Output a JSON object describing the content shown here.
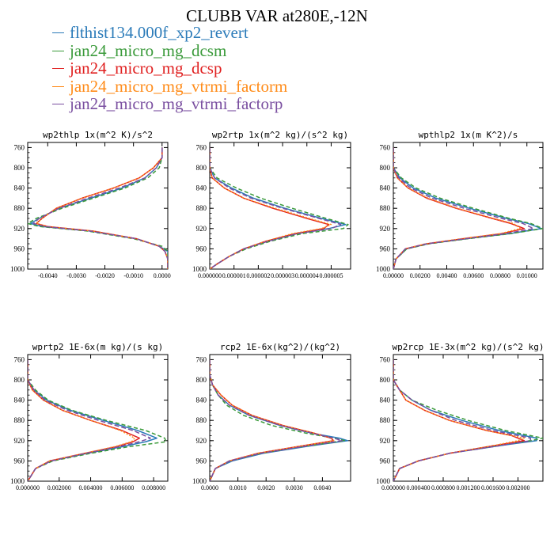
{
  "figure": {
    "title": "CLUBB VAR at280E,-12N"
  },
  "legend": [
    {
      "label": "flthist134.000f_xp2_revert",
      "color": "#2b7bb9"
    },
    {
      "label": "jan24_micro_mg_dcsm",
      "color": "#3a9a3a"
    },
    {
      "label": "jan24_micro_mg_dcsp",
      "color": "#e02020"
    },
    {
      "label": "jan24_micro_mg_vtrmi_factorm",
      "color": "#ff8c1a"
    },
    {
      "label": "jan24_micro_mg_vtrmi_factorp",
      "color": "#7a4fa0"
    }
  ],
  "chart_data": [
    {
      "type": "line",
      "title": "wp2thlp  1x(m^2 K)/s^2",
      "ylim": [
        1000,
        750
      ],
      "yticks": [
        760,
        800,
        840,
        880,
        920,
        960,
        1000
      ],
      "xlim": [
        -0.0047,
        0.0002
      ],
      "xticks": [
        -0.004,
        -0.003,
        -0.002,
        -0.001,
        0.0
      ],
      "xtick_labels": [
        "-0.0040",
        "-0.0030",
        "-0.0020",
        "-0.0010",
        "0.0000"
      ],
      "levels": [
        760,
        780,
        800,
        820,
        840,
        860,
        880,
        900,
        910,
        916,
        925,
        940,
        955,
        965,
        980,
        1000
      ],
      "series": [
        {
          "values": [
            0.0,
            0.0,
            -0.0002,
            -0.0006,
            -0.0014,
            -0.0025,
            -0.0036,
            -0.0043,
            -0.0046,
            -0.0042,
            -0.0025,
            -0.0009,
            -0.0001,
            0.0002,
            0.0002,
            0.0002
          ]
        },
        {
          "values": [
            0.0,
            0.0,
            -0.0001,
            -0.0005,
            -0.0013,
            -0.0024,
            -0.0035,
            -0.0044,
            -0.0047,
            -0.0043,
            -0.0026,
            -0.001,
            0.0,
            0.0002,
            0.0002,
            0.0002
          ]
        },
        {
          "values": [
            0.0,
            0.0,
            -0.0003,
            -0.0008,
            -0.0017,
            -0.0028,
            -0.0037,
            -0.0042,
            -0.0044,
            -0.004,
            -0.0024,
            -0.0009,
            -0.0001,
            0.0001,
            0.0002,
            0.0002
          ]
        },
        {
          "values": [
            0.0,
            0.0,
            -0.0003,
            -0.0008,
            -0.0017,
            -0.0028,
            -0.0037,
            -0.0042,
            -0.0044,
            -0.004,
            -0.0024,
            -0.0009,
            -0.0001,
            0.0001,
            0.0002,
            0.0002
          ]
        },
        {
          "values": [
            0.0,
            0.0,
            -0.0002,
            -0.0006,
            -0.0015,
            -0.0026,
            -0.0036,
            -0.0043,
            -0.0045,
            -0.0041,
            -0.0025,
            -0.0009,
            -0.0001,
            0.0001,
            0.0002,
            0.0002
          ]
        }
      ]
    },
    {
      "type": "line",
      "title": "wp2rtp  1x(m^2 kg)/(s^2 kg)",
      "ylim": [
        1000,
        750
      ],
      "yticks": [
        760,
        800,
        840,
        880,
        920,
        960,
        1000
      ],
      "xlim": [
        0.0,
        5.8e-06
      ],
      "xticks": [
        0.0,
        1e-06,
        2e-06,
        3e-06,
        4e-06,
        5e-06
      ],
      "xtick_labels": [
        "0.000000",
        "0.000001",
        "0.000002",
        "0.000003",
        "0.000004",
        "0.000005"
      ],
      "levels": [
        760,
        800,
        820,
        840,
        860,
        880,
        900,
        912,
        920,
        930,
        945,
        960,
        975,
        990,
        1000
      ],
      "series": [
        {
          "values": [
            0.0,
            0.0,
            2e-07,
            9e-07,
            1.8e-06,
            3.1e-06,
            4.6e-06,
            5.6e-06,
            4.9e-06,
            3.6e-06,
            2.4e-06,
            1.4e-06,
            8e-07,
            3e-07,
            0.0
          ]
        },
        {
          "values": [
            0.0,
            0.0,
            3e-07,
            1.1e-06,
            2.1e-06,
            3.4e-06,
            4.8e-06,
            5.7e-06,
            5.5e-06,
            3.8e-06,
            2.5e-06,
            1.5e-06,
            8e-07,
            3e-07,
            0.0
          ]
        },
        {
          "values": [
            0.0,
            0.0,
            1e-07,
            6e-07,
            1.4e-06,
            2.6e-06,
            4e-06,
            4.9e-06,
            4.7e-06,
            3.5e-06,
            2.3e-06,
            1.4e-06,
            8e-07,
            3e-07,
            0.0
          ]
        },
        {
          "values": [
            0.0,
            0.0,
            1e-07,
            6e-07,
            1.4e-06,
            2.7e-06,
            4.1e-06,
            5e-06,
            4.6e-06,
            3.4e-06,
            2.3e-06,
            1.4e-06,
            8e-07,
            3e-07,
            0.0
          ]
        },
        {
          "values": [
            0.0,
            0.0,
            2e-07,
            8e-07,
            1.7e-06,
            3e-06,
            4.5e-06,
            5.4e-06,
            5e-06,
            3.6e-06,
            2.4e-06,
            1.4e-06,
            8e-07,
            3e-07,
            0.0
          ]
        }
      ]
    },
    {
      "type": "line",
      "title": "wpthlp2  1x(m K^2)/s",
      "ylim": [
        1000,
        750
      ],
      "yticks": [
        760,
        800,
        840,
        880,
        920,
        960,
        1000
      ],
      "xlim": [
        0.0,
        0.0112
      ],
      "xticks": [
        0.0,
        0.002,
        0.004,
        0.006,
        0.008,
        0.01
      ],
      "xtick_labels": [
        "0.00000",
        "0.00200",
        "0.00400",
        "0.00600",
        "0.00800",
        "0.01000"
      ],
      "levels": [
        760,
        800,
        820,
        840,
        860,
        880,
        900,
        910,
        920,
        930,
        940,
        950,
        960,
        980,
        1000
      ],
      "series": [
        {
          "values": [
            0.0,
            0.0,
            0.0005,
            0.0015,
            0.0032,
            0.0057,
            0.0085,
            0.0101,
            0.0111,
            0.0087,
            0.0055,
            0.0026,
            0.001,
            0.0002,
            0.0
          ]
        },
        {
          "values": [
            0.0,
            0.0,
            0.0006,
            0.0017,
            0.0035,
            0.006,
            0.0087,
            0.0103,
            0.0112,
            0.0088,
            0.0056,
            0.0027,
            0.001,
            0.0002,
            0.0
          ]
        },
        {
          "values": [
            0.0,
            0.0,
            0.0003,
            0.0011,
            0.0025,
            0.0047,
            0.0074,
            0.0088,
            0.0098,
            0.0081,
            0.0052,
            0.0025,
            0.0009,
            0.0002,
            0.0
          ]
        },
        {
          "values": [
            0.0,
            0.0,
            0.0003,
            0.0011,
            0.0026,
            0.0048,
            0.0075,
            0.009,
            0.0095,
            0.008,
            0.0051,
            0.0024,
            0.0009,
            0.0002,
            0.0
          ]
        },
        {
          "values": [
            0.0,
            0.0,
            0.0004,
            0.0013,
            0.0029,
            0.0053,
            0.0081,
            0.0097,
            0.0105,
            0.0084,
            0.0054,
            0.0025,
            0.0009,
            0.0002,
            0.0
          ]
        }
      ]
    },
    {
      "type": "line",
      "title": "wprtp2  1E-6x(m kg)/(s kg)",
      "ylim": [
        1000,
        750
      ],
      "yticks": [
        760,
        800,
        840,
        880,
        920,
        960,
        1000
      ],
      "xlim": [
        0.0,
        0.0089
      ],
      "xticks": [
        0.0,
        0.002,
        0.004,
        0.006,
        0.008
      ],
      "xtick_labels": [
        "0.000000",
        "0.002000",
        "0.004000",
        "0.006000",
        "0.008000"
      ],
      "levels": [
        760,
        800,
        820,
        840,
        860,
        880,
        900,
        915,
        922,
        932,
        945,
        960,
        975,
        990,
        1000
      ],
      "series": [
        {
          "values": [
            0.0,
            0.0,
            0.0004,
            0.0012,
            0.0027,
            0.0048,
            0.007,
            0.0082,
            0.0075,
            0.006,
            0.0038,
            0.0015,
            0.0005,
            0.0002,
            0.0
          ]
        },
        {
          "values": [
            0.0,
            0.0,
            0.0005,
            0.0013,
            0.0028,
            0.005,
            0.0075,
            0.0087,
            0.0088,
            0.0064,
            0.004,
            0.0016,
            0.0005,
            0.0002,
            0.0
          ]
        },
        {
          "values": [
            0.0,
            0.0,
            0.0003,
            0.001,
            0.0022,
            0.004,
            0.006,
            0.0071,
            0.0067,
            0.0056,
            0.0036,
            0.0014,
            0.0005,
            0.0002,
            0.0
          ]
        },
        {
          "values": [
            0.0,
            0.0,
            0.0003,
            0.001,
            0.0022,
            0.004,
            0.0059,
            0.0068,
            0.0066,
            0.0055,
            0.0036,
            0.0014,
            0.0005,
            0.0002,
            0.0
          ]
        },
        {
          "values": [
            0.0,
            0.0,
            0.0004,
            0.0011,
            0.0025,
            0.0045,
            0.0067,
            0.0078,
            0.0071,
            0.0058,
            0.0037,
            0.0015,
            0.0005,
            0.0002,
            0.0
          ]
        }
      ]
    },
    {
      "type": "line",
      "title": "rcp2  1E-6x(kg^2)/(kg^2)",
      "ylim": [
        1000,
        750
      ],
      "yticks": [
        760,
        800,
        840,
        880,
        920,
        960,
        1000
      ],
      "xlim": [
        0.0,
        0.005
      ],
      "xticks": [
        0.0,
        0.001,
        0.002,
        0.003,
        0.004
      ],
      "xtick_labels": [
        "0.0000",
        "0.0010",
        "0.0020",
        "0.0030",
        "0.0040"
      ],
      "levels": [
        760,
        790,
        810,
        830,
        850,
        870,
        890,
        905,
        915,
        920,
        930,
        945,
        960,
        975,
        1000
      ],
      "series": [
        {
          "values": [
            0.0,
            0.0,
            0.0001,
            0.0003,
            0.0007,
            0.0014,
            0.0025,
            0.0036,
            0.0046,
            0.0049,
            0.0036,
            0.0019,
            0.0008,
            0.0002,
            0.0
          ]
        },
        {
          "values": [
            0.0,
            0.0,
            0.0001,
            0.0003,
            0.0006,
            0.0012,
            0.0022,
            0.0034,
            0.0044,
            0.0048,
            0.0035,
            0.0018,
            0.0007,
            0.0002,
            0.0
          ]
        },
        {
          "values": [
            0.0,
            0.0,
            0.0001,
            0.0004,
            0.0008,
            0.0015,
            0.0026,
            0.0037,
            0.0043,
            0.0044,
            0.0033,
            0.0017,
            0.0007,
            0.0002,
            0.0
          ]
        },
        {
          "values": [
            0.0,
            0.0,
            0.0001,
            0.0004,
            0.0008,
            0.0015,
            0.0026,
            0.0037,
            0.0043,
            0.0044,
            0.0033,
            0.0017,
            0.0007,
            0.0002,
            0.0
          ]
        },
        {
          "values": [
            0.0,
            0.0,
            0.0001,
            0.0003,
            0.0007,
            0.0014,
            0.0025,
            0.0036,
            0.0044,
            0.0047,
            0.0035,
            0.0018,
            0.0007,
            0.0002,
            0.0
          ]
        }
      ]
    },
    {
      "type": "line",
      "title": "wp2rcp  1E-3x(m^2 kg)/(s^2 kg)",
      "ylim": [
        1000,
        750
      ],
      "yticks": [
        760,
        800,
        840,
        880,
        920,
        960,
        1000
      ],
      "xlim": [
        0.0,
        0.0024
      ],
      "xticks": [
        0.0,
        0.0004,
        0.0008,
        0.0012,
        0.0016,
        0.002
      ],
      "xtick_labels": [
        "0.000000",
        "0.000400",
        "0.000800",
        "0.001200",
        "0.001600",
        "0.002000"
      ],
      "levels": [
        760,
        800,
        820,
        840,
        860,
        880,
        900,
        910,
        915,
        920,
        930,
        945,
        960,
        975,
        1000
      ],
      "series": [
        {
          "values": [
            0.0,
            0.0,
            0.0001,
            0.0003,
            0.0006,
            0.0011,
            0.0017,
            0.0021,
            0.0023,
            0.0023,
            0.0017,
            0.0009,
            0.0004,
            0.0001,
            0.0
          ]
        },
        {
          "values": [
            0.0,
            0.0,
            0.0001,
            0.0003,
            0.0007,
            0.0012,
            0.0018,
            0.0022,
            0.0024,
            0.0022,
            0.0016,
            0.0009,
            0.0004,
            0.0001,
            0.0
          ]
        },
        {
          "values": [
            0.0,
            0.0,
            0.0001,
            0.0002,
            0.0005,
            0.0009,
            0.0015,
            0.0019,
            0.002,
            0.0021,
            0.0016,
            0.0009,
            0.0004,
            0.0001,
            0.0
          ]
        },
        {
          "values": [
            0.0,
            0.0,
            0.0001,
            0.0002,
            0.0005,
            0.0009,
            0.0015,
            0.0019,
            0.0021,
            0.002,
            0.0016,
            0.0009,
            0.0004,
            0.0001,
            0.0
          ]
        },
        {
          "values": [
            0.0,
            0.0,
            0.0001,
            0.0003,
            0.0006,
            0.001,
            0.0016,
            0.002,
            0.0022,
            0.0022,
            0.0017,
            0.0009,
            0.0004,
            0.0001,
            0.0
          ]
        }
      ]
    }
  ]
}
